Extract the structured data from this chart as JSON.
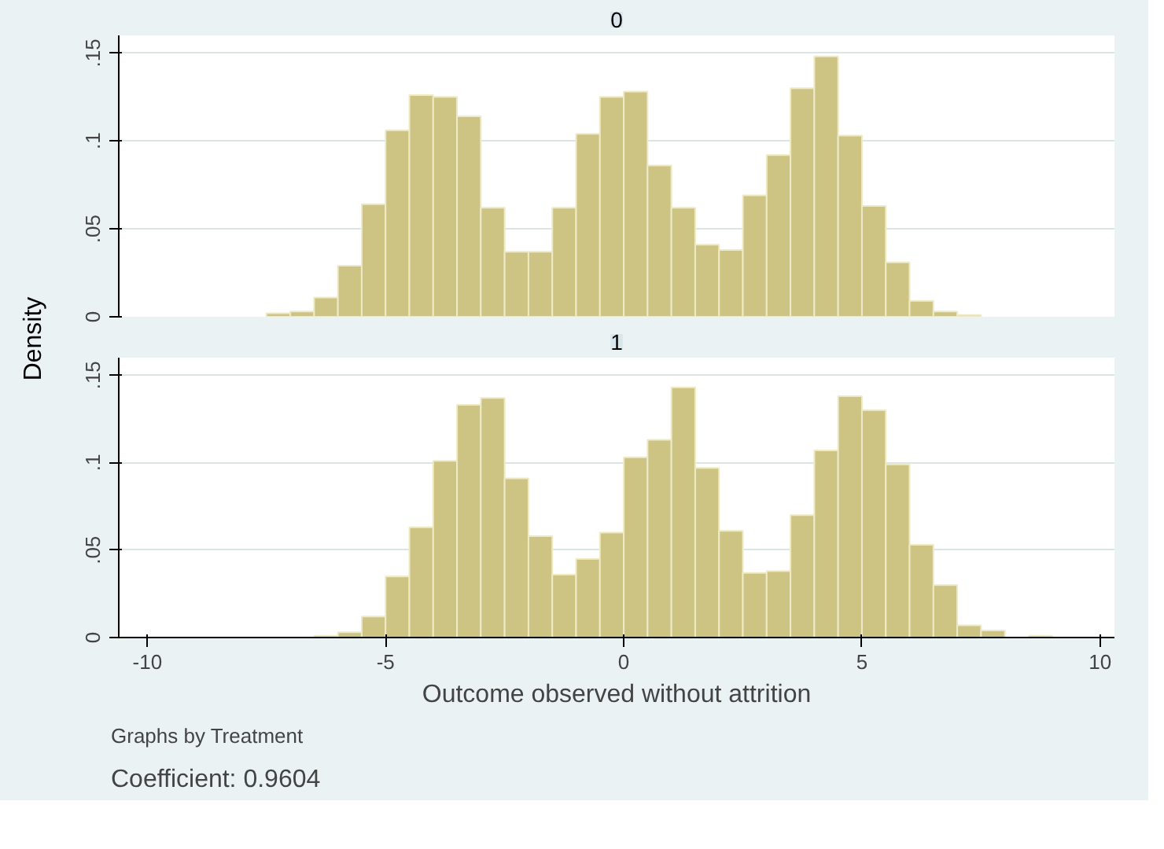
{
  "chart_data": [
    {
      "type": "histogram",
      "title": "0",
      "ylabel": "Density",
      "color": "#cdc484",
      "grid": "y",
      "tick_labels": "y",
      "bins": [
        -7.5,
        -7.0,
        -6.5,
        -6.0,
        -5.5,
        -5.0,
        -4.5,
        -4.0,
        -3.5,
        -3.0,
        -2.5,
        -2.0,
        -1.5,
        -1.0,
        -0.5,
        0.0,
        0.5,
        1.0,
        1.5,
        2.0,
        2.5,
        3.0,
        3.5,
        4.0,
        4.5,
        5.0,
        5.5,
        6.0,
        6.5,
        7.0,
        7.5
      ],
      "values": [
        0.002,
        0.003,
        0.011,
        0.029,
        0.064,
        0.106,
        0.126,
        0.125,
        0.114,
        0.062,
        0.037,
        0.037,
        0.062,
        0.104,
        0.125,
        0.128,
        0.086,
        0.062,
        0.041,
        0.038,
        0.069,
        0.092,
        0.13,
        0.148,
        0.103,
        0.063,
        0.031,
        0.009,
        0.003,
        0.001
      ],
      "xlim": [
        -10.6,
        10.3
      ],
      "ylim": [
        0,
        0.16
      ],
      "yticks": [
        0,
        {
          "value": 0.05,
          "label": ".05"
        },
        {
          "value": 0.1,
          "label": ".1"
        },
        {
          "value": 0.15,
          "label": ".15"
        }
      ]
    },
    {
      "type": "histogram",
      "title": "1",
      "xlabel": "Outcome observed without attrition",
      "color": "#cdc484",
      "grid": "y",
      "bins": [
        -6.5,
        -6.0,
        -5.5,
        -5.0,
        -4.5,
        -4.0,
        -3.5,
        -3.0,
        -2.5,
        -2.0,
        -1.5,
        -1.0,
        -0.5,
        0.0,
        0.5,
        1.0,
        1.5,
        2.0,
        2.5,
        3.0,
        3.5,
        4.0,
        4.5,
        5.0,
        5.5,
        6.0,
        6.5,
        7.0,
        7.5,
        8.0,
        8.5,
        9.0
      ],
      "values": [
        0.001,
        0.003,
        0.012,
        0.035,
        0.063,
        0.101,
        0.133,
        0.137,
        0.091,
        0.058,
        0.036,
        0.045,
        0.06,
        0.103,
        0.113,
        0.143,
        0.097,
        0.061,
        0.037,
        0.038,
        0.07,
        0.107,
        0.138,
        0.13,
        0.099,
        0.053,
        0.03,
        0.007,
        0.004,
        0,
        0.001
      ],
      "xlim": [
        -10.6,
        10.3
      ],
      "ylim": [
        0,
        0.16
      ],
      "xticks": [
        -10,
        -5,
        0,
        5,
        10
      ],
      "yticks": [
        0,
        {
          "value": 0.05,
          "label": ".05"
        },
        {
          "value": 0.1,
          "label": ".1"
        },
        {
          "value": 0.15,
          "label": ".15"
        }
      ],
      "annotations": [
        "Graphs by Treatment",
        "Coefficient: 0.9604"
      ]
    }
  ]
}
